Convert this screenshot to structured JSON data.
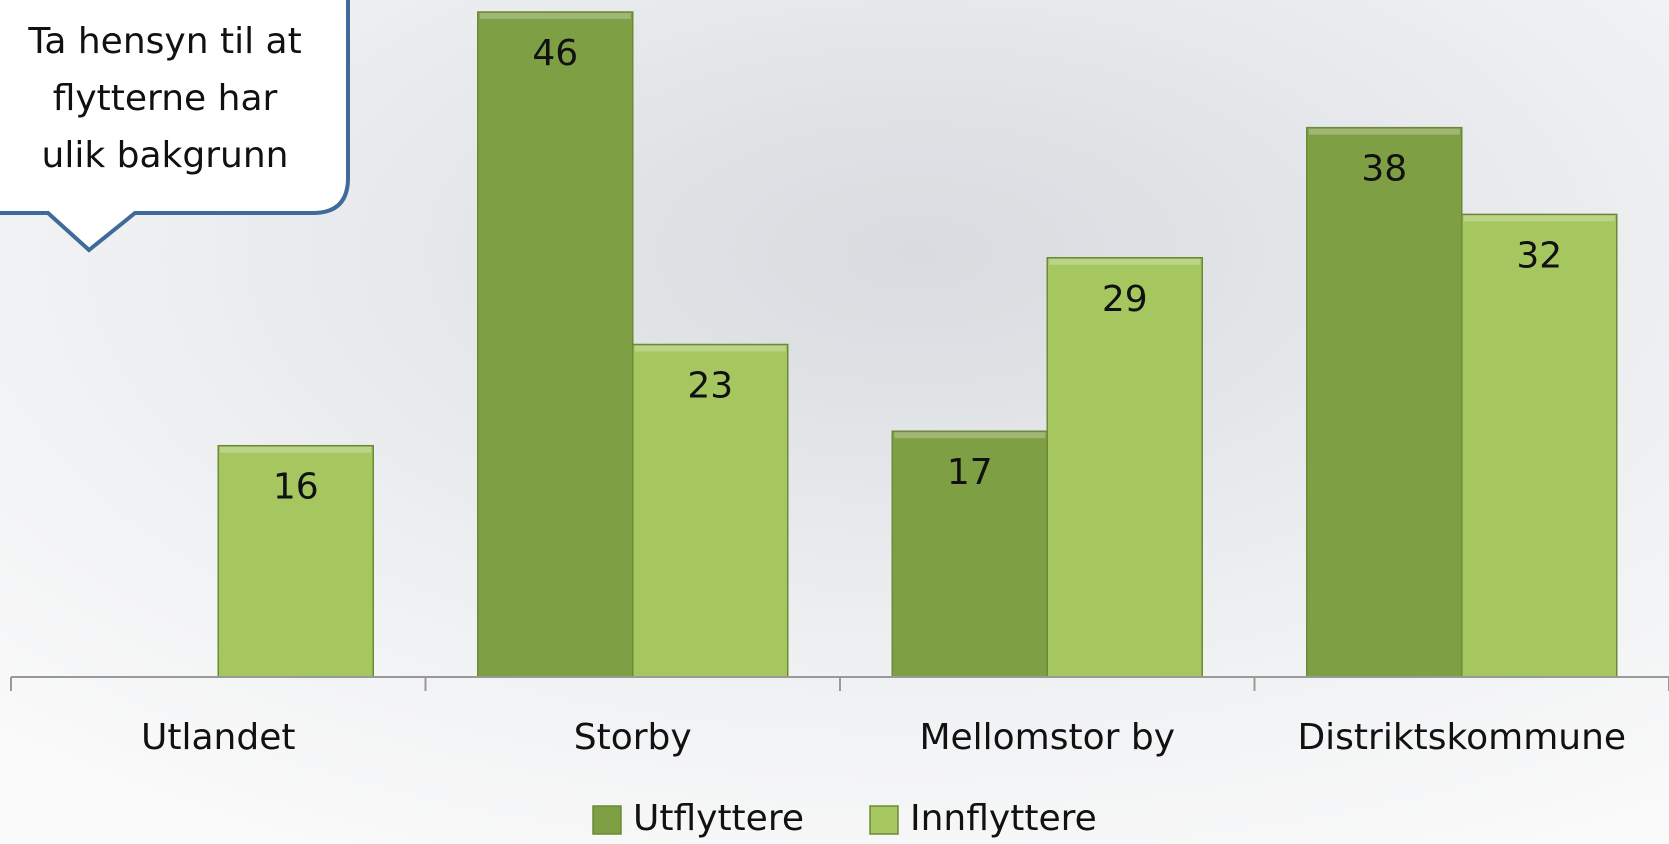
{
  "chart_data": {
    "type": "bar",
    "categories": [
      "Utlandet",
      "Storby",
      "Mellomstor by",
      "Distriktskommune"
    ],
    "series": [
      {
        "name": "Utflyttere",
        "color": "#7f9f45",
        "values": [
          null,
          46,
          17,
          38
        ]
      },
      {
        "name": "Innflyttere",
        "color": "#a6c660",
        "values": [
          16,
          23,
          29,
          32
        ]
      }
    ],
    "annotation": [
      "Ta hensyn til at",
      "flytterne har",
      "ulik bakgrunn"
    ],
    "legend": "bottom"
  }
}
